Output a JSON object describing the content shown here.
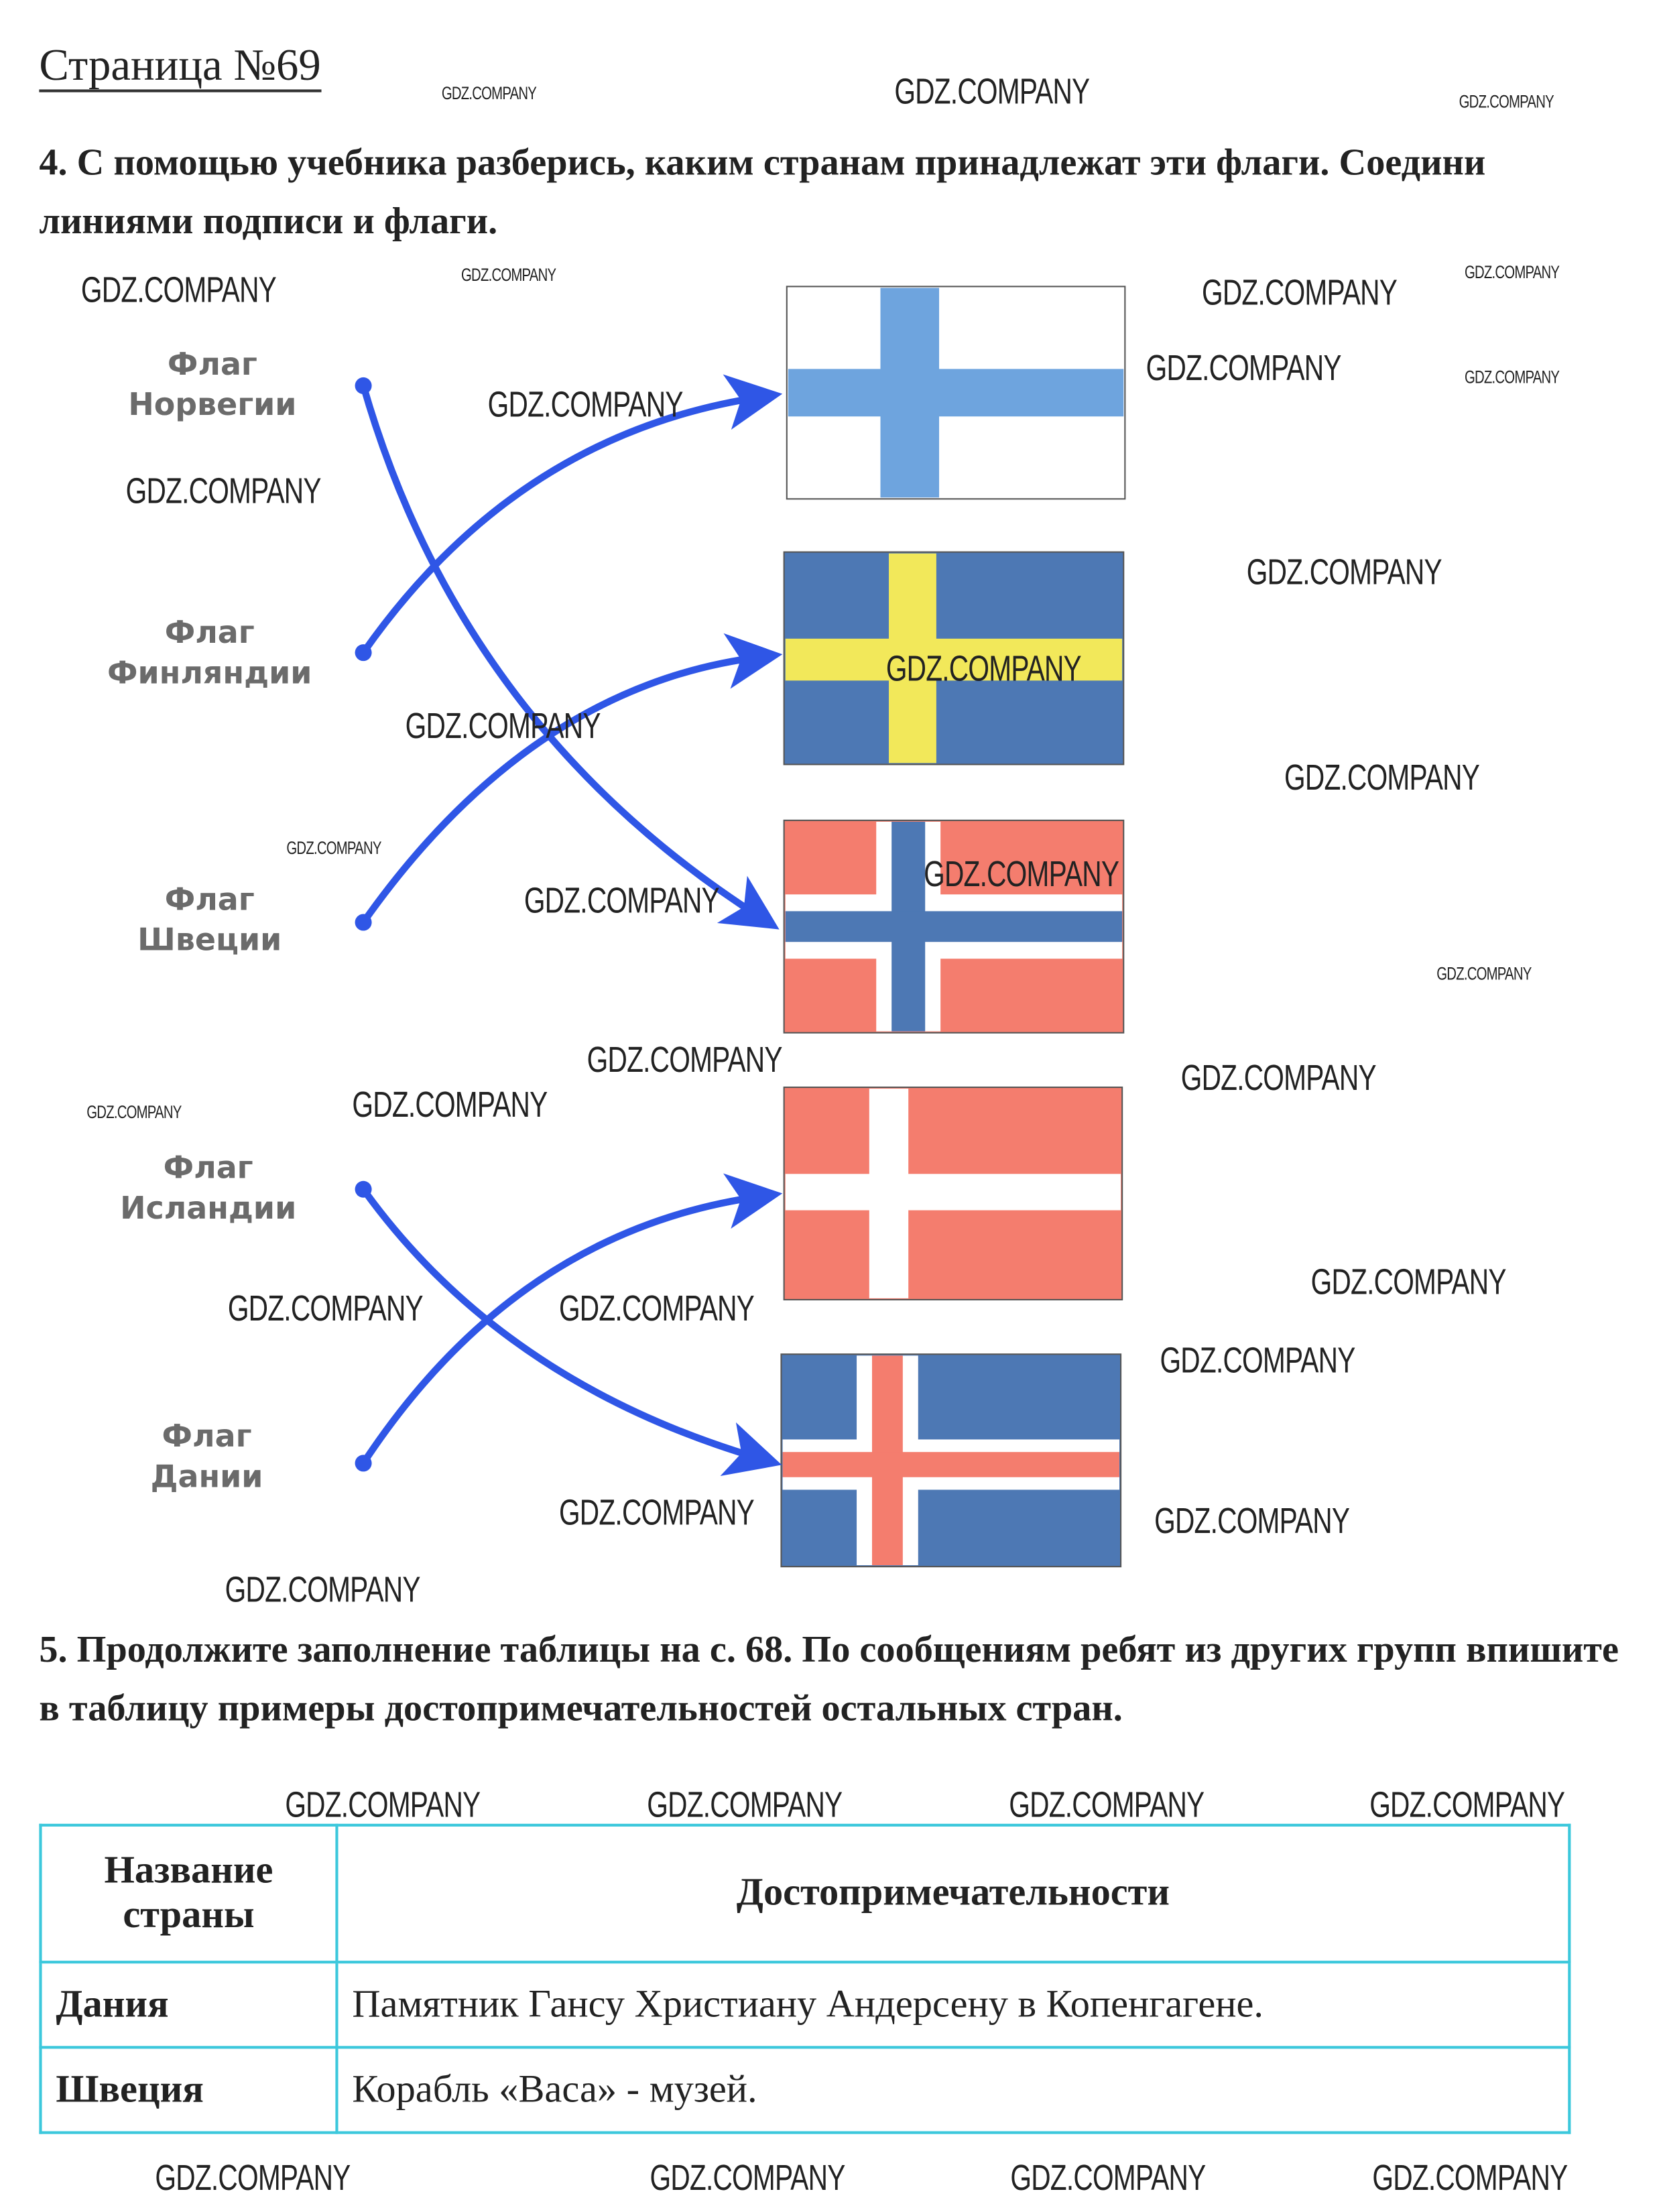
{
  "page_title": "Страница №69",
  "task4": {
    "text": "4. С помощью учебника разберись, каким странам принадлежат эти флаги. Соедини линиями подписи и флаги."
  },
  "labels": [
    {
      "line1": "Флаг",
      "line2": "Норвегии"
    },
    {
      "line1": "Флаг",
      "line2": "Финляндии"
    },
    {
      "line1": "Флаг",
      "line2": "Швеции"
    },
    {
      "line1": "Флаг",
      "line2": "Исландии"
    },
    {
      "line1": "Флаг",
      "line2": "Дании"
    }
  ],
  "flags": [
    "finland-flag",
    "sweden-flag",
    "norway-flag",
    "denmark-flag",
    "iceland-flag"
  ],
  "connections": [
    {
      "label": "Норвегии",
      "flag": "norway-flag"
    },
    {
      "label": "Финляндии",
      "flag": "finland-flag"
    },
    {
      "label": "Швеции",
      "flag": "sweden-flag"
    },
    {
      "label": "Исландии",
      "flag": "iceland-flag"
    },
    {
      "label": "Дании",
      "flag": "denmark-flag"
    }
  ],
  "colors": {
    "arrow": "#2f56e6",
    "flag_blue": "#4d78b4",
    "finland_blue": "#6ea4de",
    "yellow": "#f2e85a",
    "red": "#f47d6e",
    "table_border": "#3cc8dc",
    "label_gray": "#6b6b6b"
  },
  "task5": {
    "text": "5. Продолжите заполнение таблицы на с. 68. По сообщениям ребят из других групп впишите в таблицу примеры достопримечательностей остальных стран."
  },
  "table": {
    "headers": [
      "Название страны",
      "Достопримечательности"
    ],
    "rows": [
      [
        "Дания",
        "Памятник Гансу Христиану Андерсену в Копенгагене."
      ],
      [
        "Швеция",
        "Корабль «Васа» - музей."
      ]
    ]
  },
  "watermark": "GDZ.COMPANY"
}
